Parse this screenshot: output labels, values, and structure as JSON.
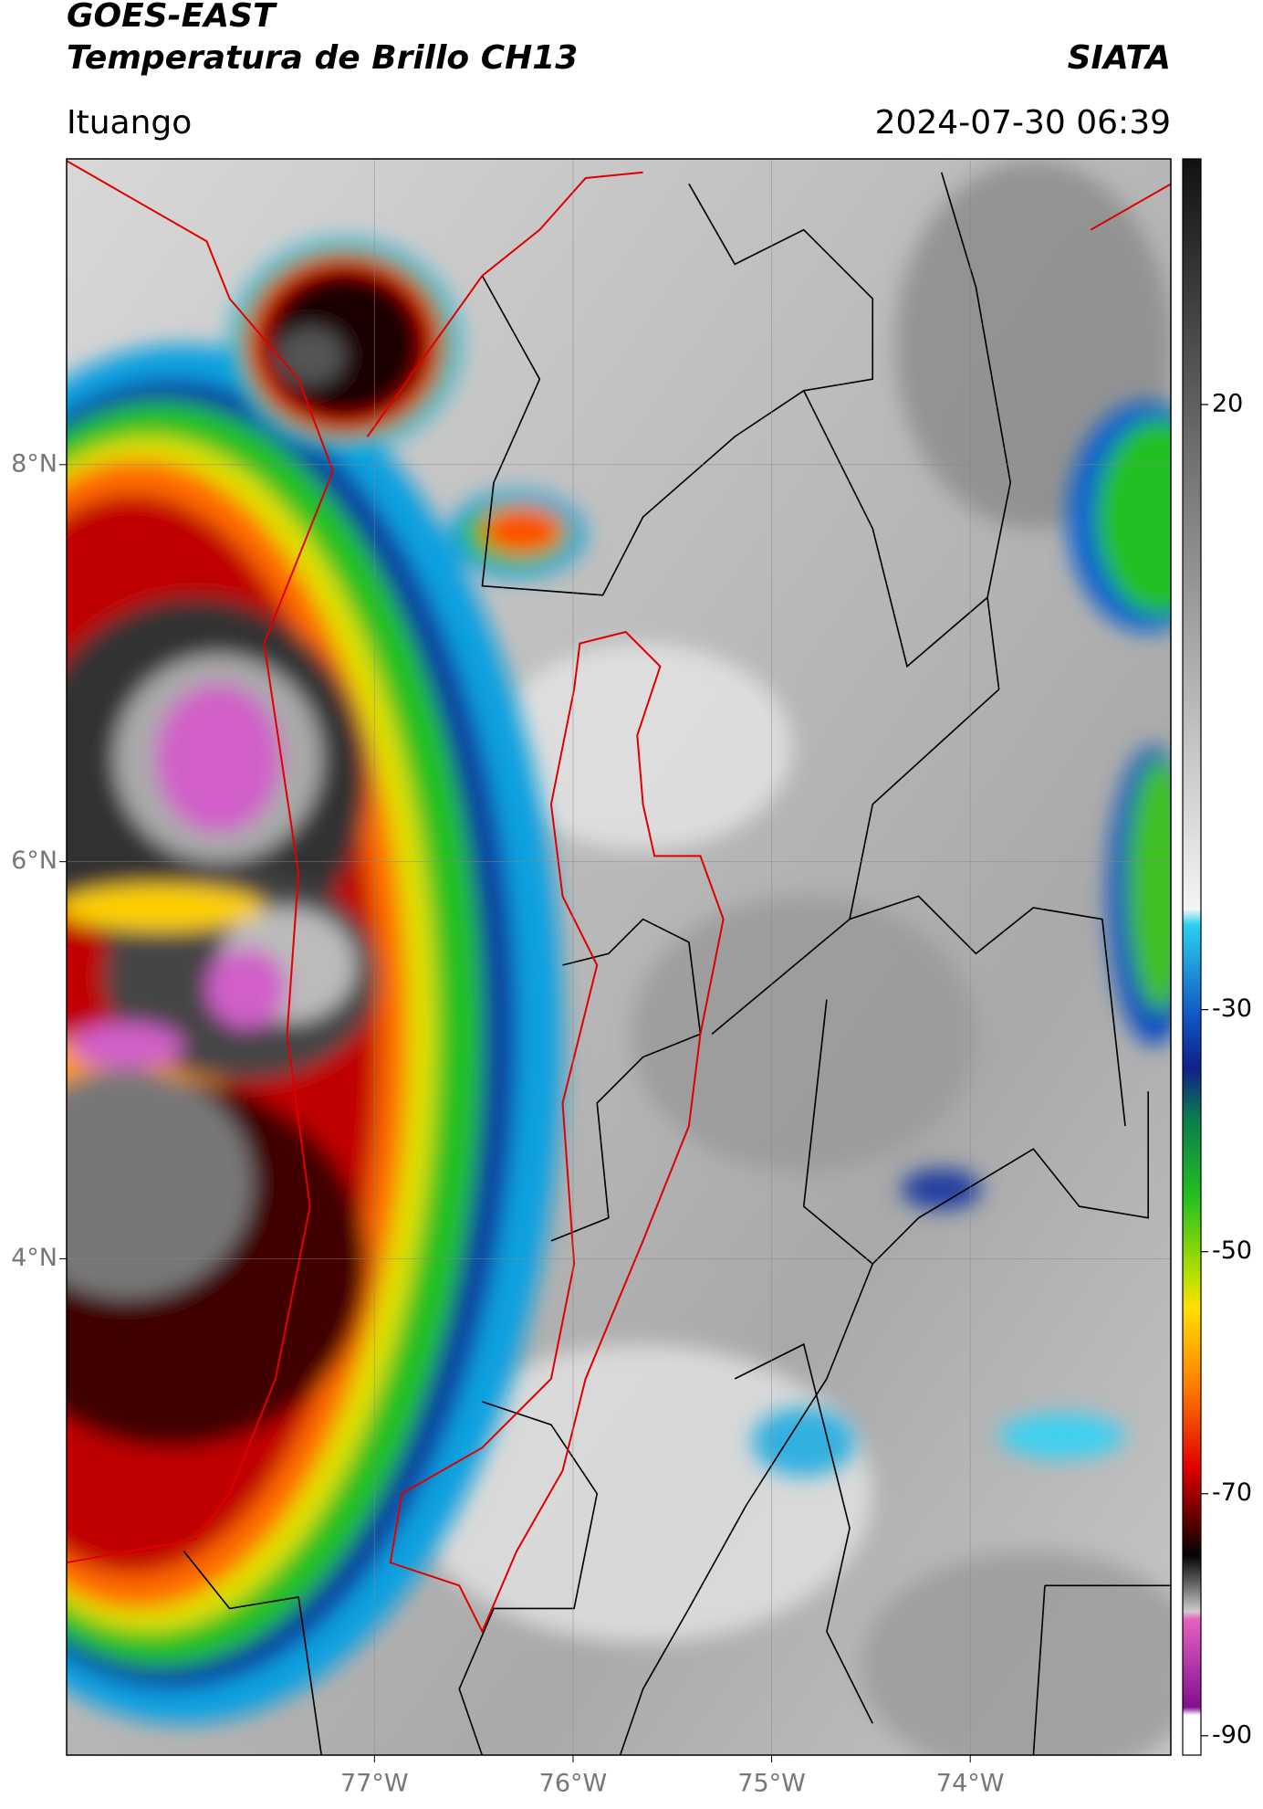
{
  "header": {
    "title": "GOES-EAST",
    "subtitle": "Temperatura de Brillo CH13",
    "source": "SIATA",
    "region": "Ituango",
    "datetime": "2024-07-30 06:39"
  },
  "map": {
    "latlim": [
      1.5,
      9.54
    ],
    "lonlim": [
      -78.55,
      -72.99
    ],
    "lat_ticks": [
      {
        "value": 8,
        "label": "8°N"
      },
      {
        "value": 6,
        "label": "6°N"
      },
      {
        "value": 4,
        "label": "4°N"
      }
    ],
    "lon_ticks": [
      {
        "value": -77,
        "label": "77°W"
      },
      {
        "value": -76,
        "label": "76°W"
      },
      {
        "value": -75,
        "label": "75°W"
      },
      {
        "value": -74,
        "label": "74°W"
      }
    ],
    "grid": true
  },
  "colorbar": {
    "lim": [
      -91.6,
      40.3
    ],
    "ticks": [
      20,
      -30,
      -50,
      -70,
      -90
    ]
  }
}
